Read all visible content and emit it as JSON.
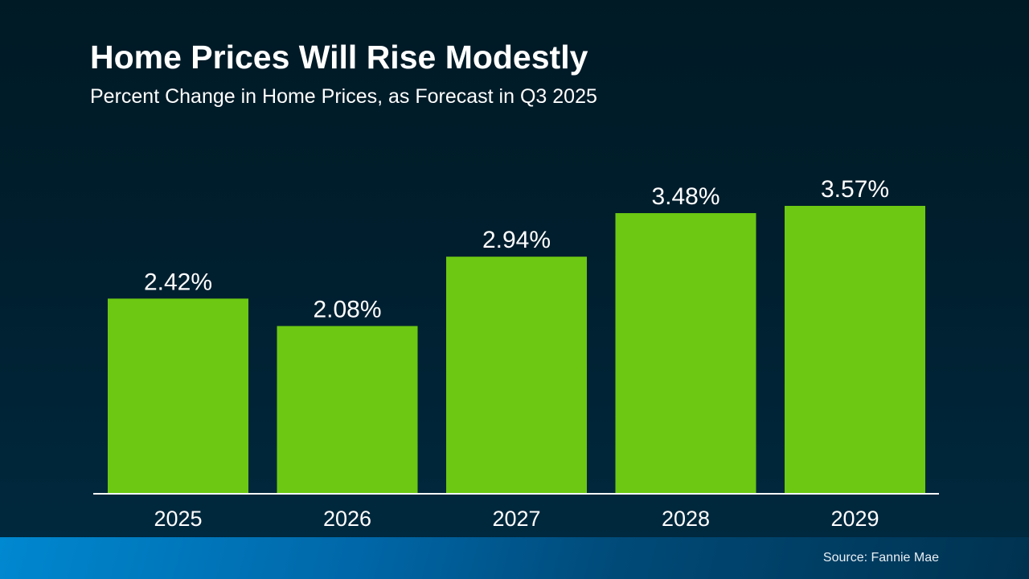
{
  "chart_data": {
    "type": "bar",
    "title": "Home Prices Will Rise Modestly",
    "subtitle": "Percent Change in Home Prices, as Forecast in Q3 2025",
    "categories": [
      "2025",
      "2026",
      "2027",
      "2028",
      "2029"
    ],
    "values": [
      2.42,
      2.08,
      2.94,
      3.48,
      3.57
    ],
    "data_labels": [
      "2.42%",
      "2.08%",
      "2.94%",
      "3.48%",
      "3.57%"
    ],
    "xlabel": "",
    "ylabel": "",
    "ylim": [
      0,
      3.57
    ],
    "grid": false,
    "bar_color": "#6cc812",
    "axis_color": "#ffffff"
  },
  "footer": {
    "source": "Source: Fannie Mae",
    "colors": [
      "#0088d0",
      "#00324f"
    ]
  },
  "background": [
    "#001a25",
    "#002a40"
  ]
}
